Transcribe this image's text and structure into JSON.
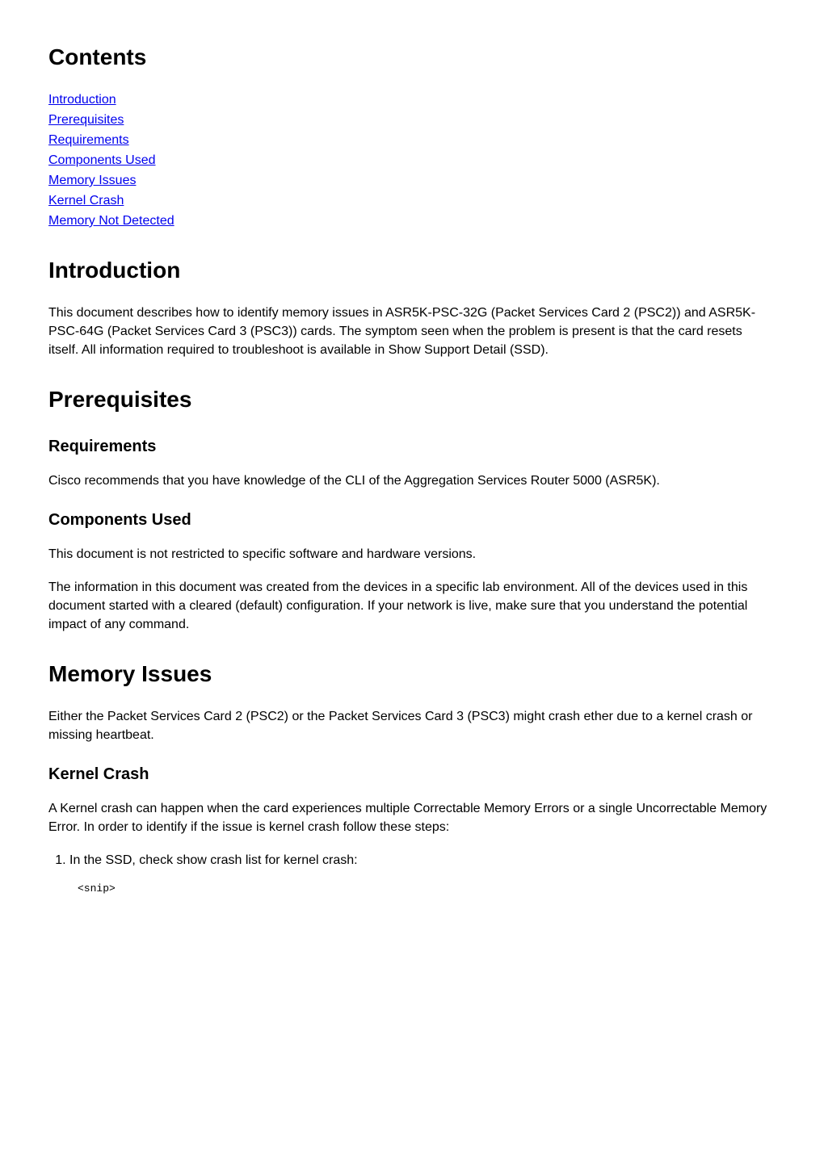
{
  "contents_heading": "Contents",
  "toc": {
    "introduction": "Introduction",
    "prerequisites": "Prerequisites",
    "requirements": "Requirements ",
    "components_used": "Components Used",
    "memory_issues": "Memory Issues",
    "kernel_crash": "Kernel Crash",
    "memory_not_detected": "Memory Not Detected"
  },
  "introduction": {
    "heading": "Introduction",
    "body": "This document describes how to identify memory issues in ASR5K-PSC-32G (Packet Services Card 2 (PSC2)) and ASR5K-PSC-64G (Packet Services Card 3 (PSC3)) cards. The symptom seen when the problem is present is that the card resets itself. All information required to troubleshoot is available in Show Support Detail (SSD)."
  },
  "prerequisites": {
    "heading": "Prerequisites",
    "requirements": {
      "heading": "Requirements",
      "body": "Cisco recommends that you have knowledge of the CLI of the Aggregation Services Router 5000 (ASR5K)."
    },
    "components_used": {
      "heading": "Components Used",
      "body1": "This document is not restricted to specific software and hardware versions.",
      "body2": "The information in this document was created from the devices in a specific lab environment. All of the devices used in this document started with a cleared (default) configuration. If your network is live, make sure that you understand the potential impact of any command."
    }
  },
  "memory_issues": {
    "heading": "Memory Issues",
    "body": "Either the Packet Services Card 2 (PSC2) or the Packet Services Card 3 (PSC3) might crash ether due to a kernel crash or missing heartbeat.",
    "kernel_crash": {
      "heading": "Kernel Crash",
      "body": "A Kernel crash can happen when the card experiences multiple Correctable Memory Errors or a single Uncorrectable Memory Error. In order to identify if the issue is kernel crash follow these steps:",
      "step1": "In the SSD, check show crash list for kernel crash:",
      "code1": "<snip>"
    }
  }
}
